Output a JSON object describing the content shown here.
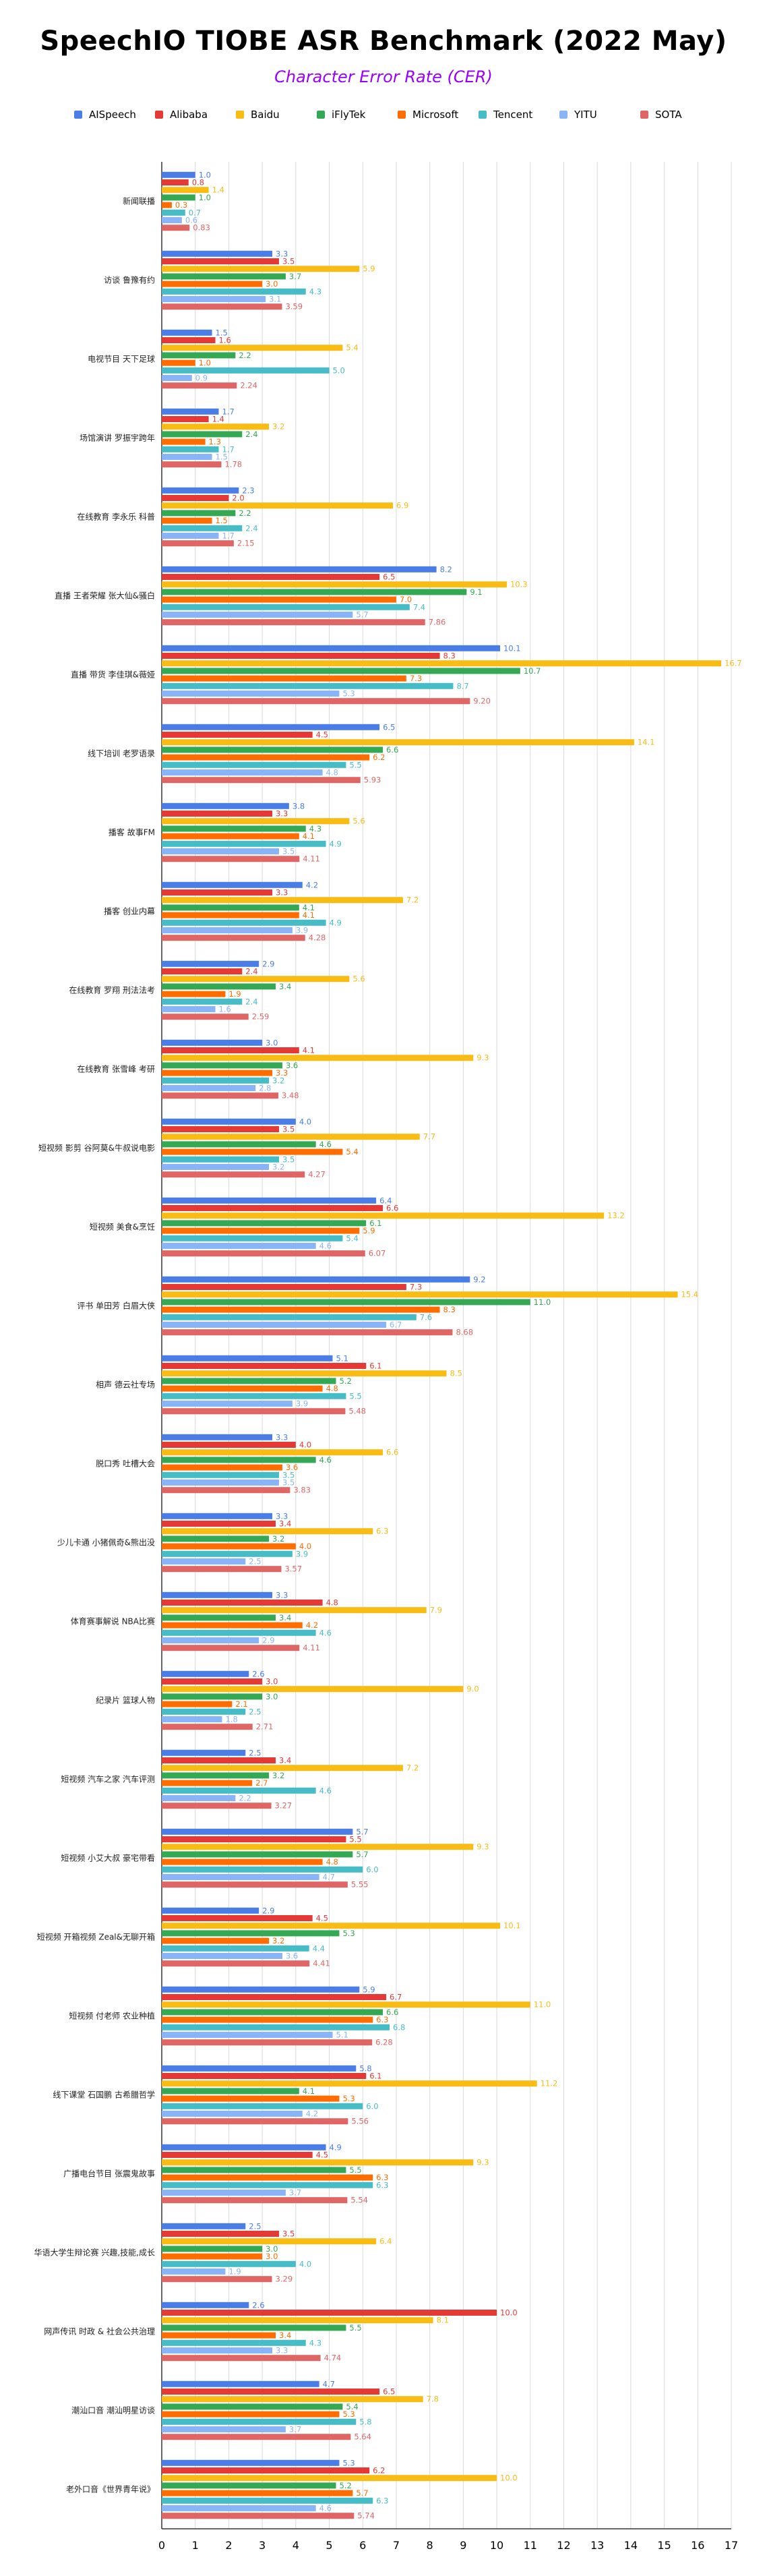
{
  "chart_data": {
    "type": "bar",
    "orientation": "horizontal",
    "title": "SpeechIO TIOBE ASR Benchmark (2022 May)",
    "subtitle": "Character Error Rate (CER)",
    "title_color": "#000000",
    "subtitle_color": "#9900ff",
    "xlim": [
      0,
      17
    ],
    "x_ticks": [
      "0",
      "1",
      "2",
      "3",
      "4",
      "5",
      "6",
      "7",
      "8",
      "9",
      "10",
      "11",
      "12",
      "13",
      "14",
      "15",
      "16",
      "17"
    ],
    "grid": "vertical",
    "legend_position": "top",
    "categories": [
      "新闻联播",
      "访谈 鲁豫有约",
      "电视节目 天下足球",
      "场馆演讲 罗振宇跨年",
      "在线教育 李永乐 科普",
      "直播 王者荣耀 张大仙&骚白",
      "直播 带货 李佳琪&薇娅",
      "线下培训 老罗语录",
      "播客 故事FM",
      "播客 创业内幕",
      "在线教育 罗翔 刑法法考",
      "在线教育 张雪峰 考研",
      "短视频 影剪 谷阿莫&牛叔说电影",
      "短视频 美食&烹饪",
      "评书 单田芳 白眉大侠",
      "相声 德云社专场",
      "脱口秀 吐槽大会",
      "少儿卡通 小猪佩奇&熊出没",
      "体育赛事解说 NBA比赛",
      "纪录片 篮球人物",
      "短视频 汽车之家 汽车评测",
      "短视频 小艾大叔 豪宅带看",
      "短视频 开箱视频 Zeal&无聊开箱",
      "短视频 付老师 农业种植",
      "线下课堂 石国鹏 古希腊哲学",
      "广播电台节目 张震鬼故事",
      "华语大学生辩论赛 兴趣,技能,成长",
      "网声传讯 时政 & 社会公共治理",
      "潮汕口音 潮汕明星访谈",
      "老外口音《世界青年说》"
    ],
    "series": [
      {
        "name": "AISpeech",
        "color": "#4a7ee6",
        "values": [
          1.0,
          3.3,
          1.5,
          1.7,
          2.3,
          8.2,
          10.1,
          6.5,
          3.8,
          4.2,
          2.9,
          3.0,
          4.0,
          6.4,
          9.2,
          5.1,
          3.3,
          3.3,
          3.3,
          2.6,
          2.5,
          5.7,
          2.9,
          5.9,
          5.8,
          4.9,
          2.5,
          2.6,
          4.7,
          5.3
        ]
      },
      {
        "name": "Alibaba",
        "color": "#e53935",
        "values": [
          0.8,
          3.5,
          1.6,
          1.4,
          2.0,
          6.5,
          8.3,
          4.5,
          3.3,
          3.3,
          2.4,
          4.1,
          3.5,
          6.6,
          7.3,
          6.1,
          4.0,
          3.4,
          4.8,
          3.0,
          3.4,
          5.5,
          4.5,
          6.7,
          6.1,
          4.5,
          3.5,
          10.0,
          6.5,
          6.2
        ]
      },
      {
        "name": "Baidu",
        "color": "#f9bc15",
        "values": [
          1.4,
          5.9,
          5.4,
          3.2,
          6.9,
          10.3,
          16.7,
          14.1,
          5.6,
          7.2,
          5.6,
          9.3,
          7.7,
          13.2,
          15.4,
          8.5,
          6.6,
          6.3,
          7.9,
          9.0,
          7.2,
          9.3,
          10.1,
          11.0,
          11.2,
          9.3,
          6.4,
          8.1,
          7.8,
          10.0
        ]
      },
      {
        "name": "iFlyTek",
        "color": "#34a853",
        "values": [
          1.0,
          3.7,
          2.2,
          2.4,
          2.2,
          9.1,
          10.7,
          6.6,
          4.3,
          4.1,
          3.4,
          3.6,
          4.6,
          6.1,
          11.0,
          5.2,
          4.6,
          3.2,
          3.4,
          3.0,
          3.2,
          5.7,
          5.3,
          6.6,
          4.1,
          5.5,
          3.0,
          5.5,
          5.4,
          5.2
        ]
      },
      {
        "name": "Microsoft",
        "color": "#ff6d01",
        "values": [
          0.3,
          3.0,
          1.0,
          1.3,
          1.5,
          7.0,
          7.3,
          6.2,
          4.1,
          4.1,
          1.9,
          3.3,
          5.4,
          5.9,
          8.3,
          4.8,
          3.6,
          4.0,
          4.2,
          2.1,
          2.7,
          4.8,
          3.2,
          6.3,
          5.3,
          6.3,
          3.0,
          3.4,
          5.3,
          5.7
        ]
      },
      {
        "name": "Tencent",
        "color": "#46bdc6",
        "values": [
          0.7,
          4.3,
          5.0,
          1.7,
          2.4,
          7.4,
          8.7,
          5.5,
          4.9,
          4.9,
          2.4,
          3.2,
          3.5,
          5.4,
          7.6,
          5.5,
          3.5,
          3.9,
          4.6,
          2.5,
          4.6,
          6.0,
          4.4,
          6.8,
          6.0,
          6.3,
          4.0,
          4.3,
          5.8,
          6.3
        ]
      },
      {
        "name": "YITU",
        "color": "#8ab4f8",
        "values": [
          0.6,
          3.1,
          0.9,
          1.5,
          1.7,
          5.7,
          5.3,
          4.8,
          3.5,
          3.9,
          1.6,
          2.8,
          3.2,
          4.6,
          6.7,
          3.9,
          3.5,
          2.5,
          2.9,
          1.8,
          2.2,
          4.7,
          3.6,
          5.1,
          4.2,
          3.7,
          1.9,
          3.3,
          3.7,
          4.6
        ]
      },
      {
        "name": "SOTA",
        "color": "#e06666",
        "values": [
          0.83,
          3.59,
          2.24,
          1.78,
          2.15,
          7.86,
          9.2,
          5.93,
          4.11,
          4.28,
          2.59,
          3.48,
          4.27,
          6.07,
          8.68,
          5.48,
          3.83,
          3.57,
          4.11,
          2.71,
          3.27,
          5.55,
          4.41,
          6.28,
          5.56,
          5.54,
          3.29,
          4.74,
          5.64,
          5.74
        ]
      }
    ]
  }
}
